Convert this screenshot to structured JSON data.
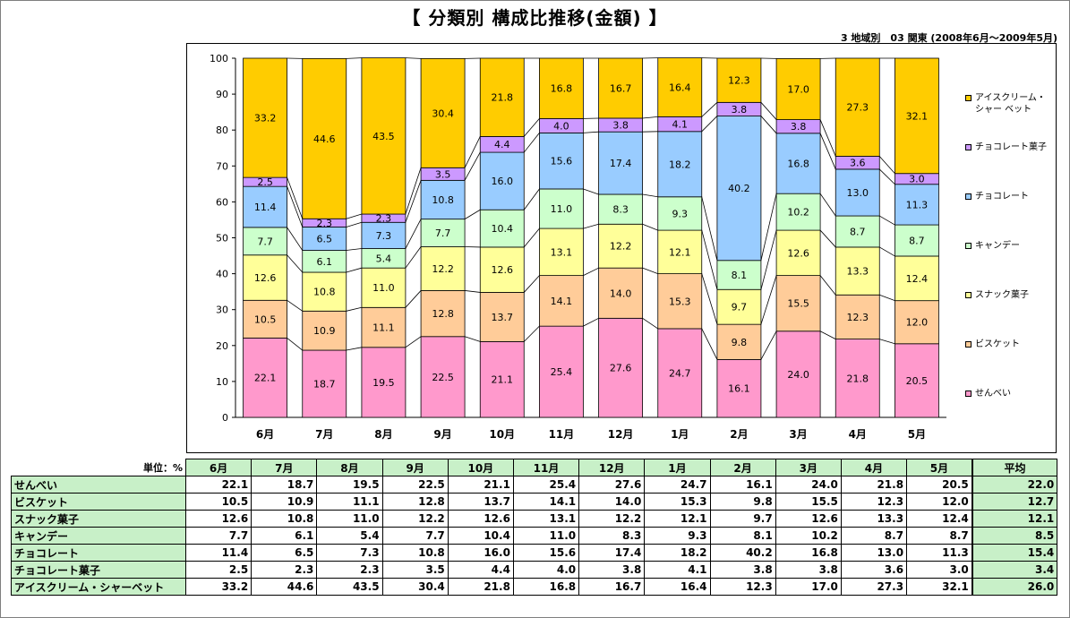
{
  "title": "【 分類別 構成比推移(金額) 】",
  "subtitle": "3 地域別　03 関東 (2008年6月～2009年5月)",
  "chart_data": {
    "type": "bar",
    "stacked": true,
    "title": "【 分類別 構成比推移(金額) 】",
    "categories": [
      "6月",
      "7月",
      "8月",
      "9月",
      "10月",
      "11月",
      "12月",
      "1月",
      "2月",
      "3月",
      "4月",
      "5月"
    ],
    "ylim": [
      0,
      100
    ],
    "yticks": [
      0,
      10,
      20,
      30,
      40,
      50,
      60,
      70,
      80,
      90,
      100
    ],
    "legend_position": "right",
    "series_lines": true,
    "series": [
      {
        "name": "せんべい",
        "color": "#ff99cc",
        "values": [
          22.1,
          18.7,
          19.5,
          22.5,
          21.1,
          25.4,
          27.6,
          24.7,
          16.1,
          24.0,
          21.8,
          20.5
        ]
      },
      {
        "name": "ビスケット",
        "color": "#ffcc99",
        "values": [
          10.5,
          10.9,
          11.1,
          12.8,
          13.7,
          14.1,
          14.0,
          15.3,
          9.8,
          15.5,
          12.3,
          12.0
        ]
      },
      {
        "name": "スナック菓子",
        "color": "#ffff99",
        "values": [
          12.6,
          10.8,
          11.0,
          12.2,
          12.6,
          13.1,
          12.2,
          12.1,
          9.7,
          12.6,
          13.3,
          12.4
        ]
      },
      {
        "name": "キャンデー",
        "color": "#ccffcc",
        "values": [
          7.7,
          6.1,
          5.4,
          7.7,
          10.4,
          11.0,
          8.3,
          9.3,
          8.1,
          10.2,
          8.7,
          8.7
        ]
      },
      {
        "name": "チョコレート",
        "color": "#99ccff",
        "values": [
          11.4,
          6.5,
          7.3,
          10.8,
          16.0,
          15.6,
          17.4,
          18.2,
          40.2,
          16.8,
          13.0,
          11.3
        ]
      },
      {
        "name": "チョコレート菓子",
        "color": "#cc99ff",
        "values": [
          2.5,
          2.3,
          2.3,
          3.5,
          4.4,
          4.0,
          3.8,
          4.1,
          3.8,
          3.8,
          3.6,
          3.0
        ]
      },
      {
        "name": "アイスクリーム・シャーベット",
        "color": "#ffcc00",
        "values": [
          33.2,
          44.6,
          43.5,
          30.4,
          21.8,
          16.8,
          16.7,
          16.4,
          12.3,
          17.0,
          27.3,
          32.1
        ]
      }
    ]
  },
  "legend": [
    {
      "label": "アイスクリーム・シャー ベット",
      "color": "#ffcc00"
    },
    {
      "label": "チョコレート菓子",
      "color": "#cc99ff"
    },
    {
      "label": "チョコレート",
      "color": "#99ccff"
    },
    {
      "label": "キャンデー",
      "color": "#ccffcc"
    },
    {
      "label": "スナック菓子",
      "color": "#ffff99"
    },
    {
      "label": "ビスケット",
      "color": "#ffcc99"
    },
    {
      "label": "せんべい",
      "color": "#ff99cc"
    }
  ],
  "table": {
    "unit_label": "単位：%",
    "average_header": "平均",
    "rows": [
      {
        "label": "せんべい",
        "average": "22.0"
      },
      {
        "label": "ビスケット",
        "average": "12.7"
      },
      {
        "label": "スナック菓子",
        "average": "12.1"
      },
      {
        "label": "キャンデー",
        "average": "8.5"
      },
      {
        "label": "チョコレート",
        "average": "15.4"
      },
      {
        "label": "チョコレート菓子",
        "average": "3.4"
      },
      {
        "label": "アイスクリーム・シャーベット",
        "average": "26.0"
      }
    ]
  }
}
